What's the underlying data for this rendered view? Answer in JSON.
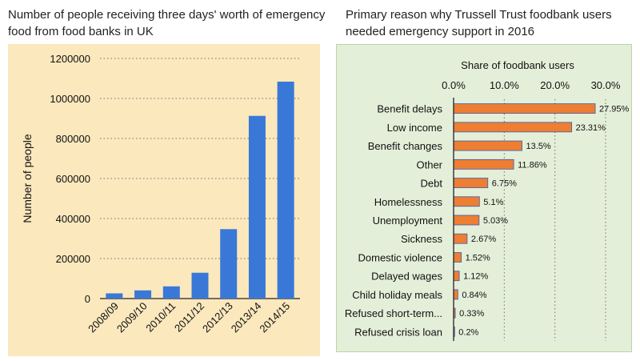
{
  "left_title": "Number of people receiving three days' worth of emergency food from food banks in UK",
  "right_title": "Primary reason why Trussell Trust foodbank users needed emergency support in 2016",
  "colors": {
    "left_bar": "#3a78d8",
    "right_bar": "#ee7e32",
    "right_bar_stroke": "#3a5db0",
    "left_bg": "#fbe8bd",
    "right_bg": "#e4efd9"
  },
  "chart_data": [
    {
      "type": "bar",
      "title": "Number of people receiving three days' worth of emergency food from food banks in UK",
      "xlabel": "",
      "ylabel": "Number of people",
      "categories": [
        "2008/09",
        "2009/10",
        "2010/11",
        "2011/12",
        "2012/13",
        "2013/14",
        "2014/15"
      ],
      "values": [
        26000,
        41000,
        61000,
        129000,
        347000,
        913000,
        1084000
      ],
      "ylim": [
        0,
        1200000
      ],
      "yticks": [
        "0",
        "200000",
        "400000",
        "600000",
        "800000",
        "1000000",
        "1200000"
      ],
      "grid": true
    },
    {
      "type": "bar",
      "orientation": "horizontal",
      "title": "Primary reason why Trussell Trust foodbank users needed emergency support in 2016",
      "xlabel": "Share of foodbank users",
      "ylabel": "",
      "categories": [
        "Benefit delays",
        "Low income",
        "Benefit changes",
        "Other",
        "Debt",
        "Homelessness",
        "Unemployment",
        "Sickness",
        "Domestic violence",
        "Delayed wages",
        "Child holiday meals",
        "Refused short-term...",
        "Refused crisis loan"
      ],
      "values": [
        27.95,
        23.31,
        13.5,
        11.86,
        6.75,
        5.1,
        5.03,
        2.67,
        1.52,
        1.12,
        0.84,
        0.33,
        0.2
      ],
      "data_labels": [
        "27.95%",
        "23.31%",
        "13.5%",
        "11.86%",
        "6.75%",
        "5.1%",
        "5.03%",
        "2.67%",
        "1.52%",
        "1.12%",
        "0.84%",
        "0.33%",
        "0.2%"
      ],
      "xlim": [
        0,
        30
      ],
      "xticks": [
        "0.0%",
        "10.0%",
        "20.0%",
        "30.0%"
      ],
      "axis_position": "top",
      "grid": true
    }
  ]
}
